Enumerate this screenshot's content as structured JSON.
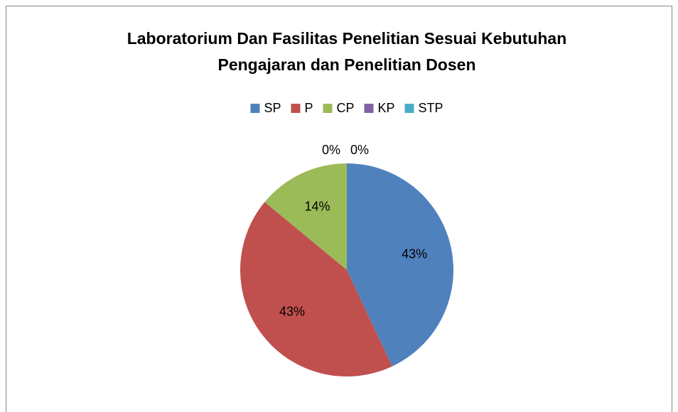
{
  "chart_data": {
    "type": "pie",
    "title": [
      "Laboratorium Dan Fasilitas Penelitian Sesuai Kebutuhan",
      "Pengajaran dan Penelitian Dosen"
    ],
    "categories": [
      "SP",
      "P",
      "CP",
      "KP",
      "STP"
    ],
    "values": [
      43,
      43,
      14,
      0,
      0
    ],
    "value_labels": [
      "43%",
      "43%",
      "14%",
      "0%",
      "0%"
    ],
    "colors": [
      "#4f81bd",
      "#c0504d",
      "#9bbb59",
      "#8064a2",
      "#4bacc6"
    ],
    "legend": "top"
  }
}
